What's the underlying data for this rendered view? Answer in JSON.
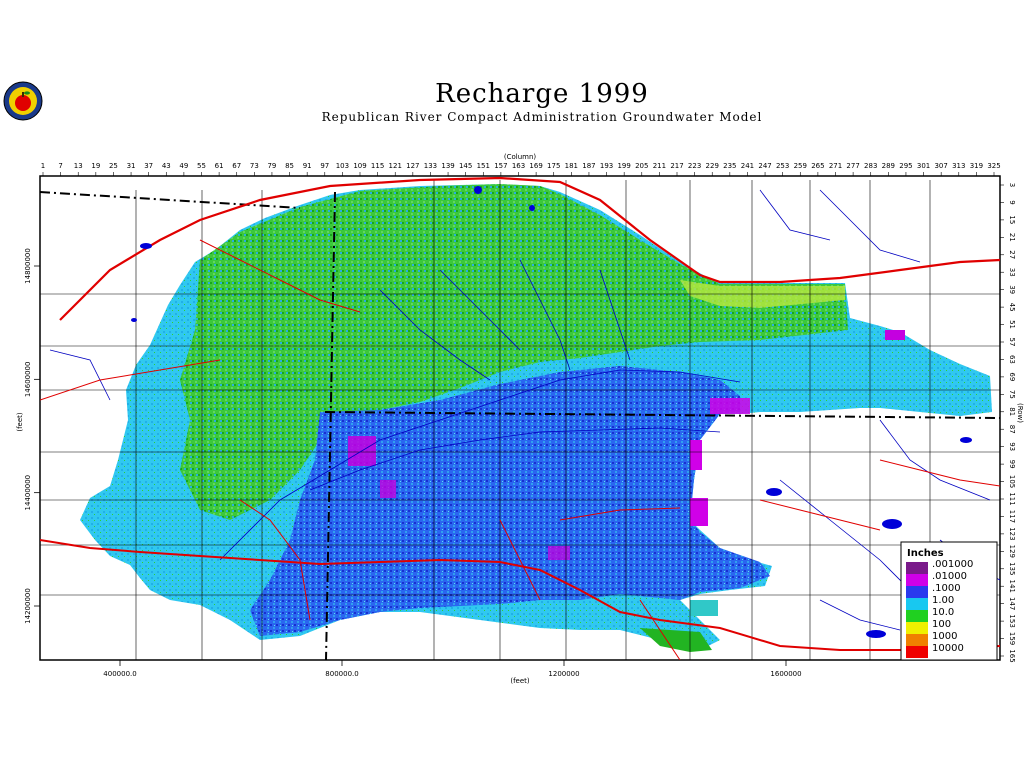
{
  "title": "Recharge 1999",
  "subtitle": "Republican River Compact Administration Groundwater Model",
  "column_axis_label": "(Column)",
  "row_axis_label": "(Row)",
  "x_feet_label": "(feet)",
  "y_feet_label": "(feet)",
  "columns": [
    "1",
    "7",
    "13",
    "19",
    "25",
    "31",
    "37",
    "43",
    "49",
    "55",
    "61",
    "67",
    "73",
    "79",
    "85",
    "91",
    "97",
    "103",
    "109",
    "115",
    "121",
    "127",
    "133",
    "139",
    "145",
    "151",
    "157",
    "163",
    "169",
    "175",
    "181",
    "187",
    "193",
    "199",
    "205",
    "211",
    "217",
    "223",
    "229",
    "235",
    "241",
    "247",
    "253",
    "259",
    "265",
    "271",
    "277",
    "283",
    "289",
    "295",
    "301",
    "307",
    "313",
    "319",
    "325"
  ],
  "rows": [
    "3",
    "9",
    "15",
    "21",
    "27",
    "33",
    "39",
    "45",
    "51",
    "57",
    "63",
    "69",
    "75",
    "81",
    "87",
    "93",
    "99",
    "105",
    "111",
    "117",
    "123",
    "129",
    "135",
    "141",
    "147",
    "153",
    "159",
    "165"
  ],
  "x_ticks": [
    {
      "label": "400000.0",
      "value": 400000
    },
    {
      "label": "800000.0",
      "value": 800000
    },
    {
      "label": "1200000",
      "value": 1200000
    },
    {
      "label": "1600000",
      "value": 1600000
    }
  ],
  "y_ticks": [
    {
      "label": "14800000",
      "value": 14800000
    },
    {
      "label": "14600000",
      "value": 14600000
    },
    {
      "label": "14400000",
      "value": 14400000
    },
    {
      "label": "14200000",
      "value": 14200000
    }
  ],
  "legend": {
    "title": "Inches",
    "items": [
      {
        "label": ".001000",
        "color": "#7a1a8a"
      },
      {
        "label": ".01000",
        "color": "#d000e8"
      },
      {
        "label": ".1000",
        "color": "#2a3aee"
      },
      {
        "label": "1.00",
        "color": "#18c8f0"
      },
      {
        "label": "10.0",
        "color": "#20d020"
      },
      {
        "label": "100",
        "color": "#f0f000"
      },
      {
        "label": "1000",
        "color": "#f08000"
      },
      {
        "label": "10000",
        "color": "#f00000"
      }
    ]
  },
  "colors": {
    "state_line": "#000000",
    "roads": "#e00000",
    "rivers": "#0000c0",
    "grid": "#000000"
  }
}
